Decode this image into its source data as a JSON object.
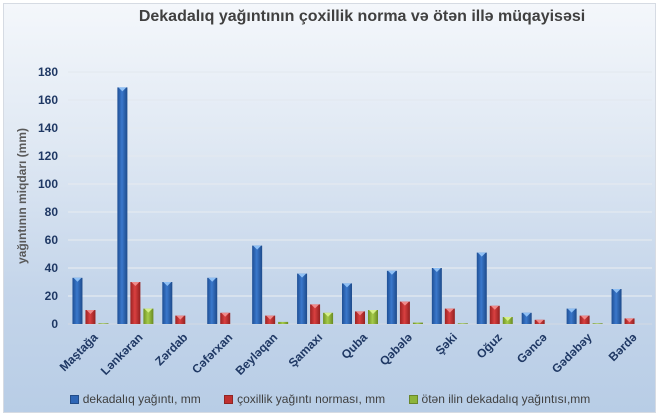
{
  "chart_data": {
    "type": "bar",
    "title": "Dekadalıq yağıntının çoxillik norma  və ötən illə müqayisəsi",
    "xlabel": "",
    "ylabel": "yağıntının miqdarı (mm)",
    "ylim": [
      0,
      180
    ],
    "yticks": [
      0,
      20,
      40,
      60,
      80,
      100,
      120,
      140,
      160,
      180
    ],
    "grid": true,
    "legend_position": "bottom",
    "categories": [
      "Maştağa",
      "Lənkəran",
      "Zərdab",
      "Cəfərxan",
      "Beyləqan",
      "Şamaxı",
      "Quba",
      "Qəbələ",
      "Şəki",
      "Oğuz",
      "Gəncə",
      "Gədəbəy",
      "Bərdə"
    ],
    "series": [
      {
        "name": "dekadalıq yağıntı, mm",
        "color": "#2e66b6",
        "values": [
          33,
          169,
          30,
          33,
          56,
          36,
          29,
          38,
          40,
          51,
          8,
          11,
          25
        ]
      },
      {
        "name": "çoxillik yağıntı norması, mm",
        "color": "#c0302f",
        "values": [
          10,
          30,
          6,
          8,
          6,
          14,
          9,
          16,
          11,
          13,
          3,
          6,
          4
        ]
      },
      {
        "name": "ötən ilin dekadalıq yağıntısı,mm",
        "color": "#8db43a",
        "values": [
          0.5,
          11,
          0,
          0,
          1.5,
          8,
          10,
          1,
          0.5,
          5,
          0,
          0.5,
          0
        ]
      }
    ]
  }
}
